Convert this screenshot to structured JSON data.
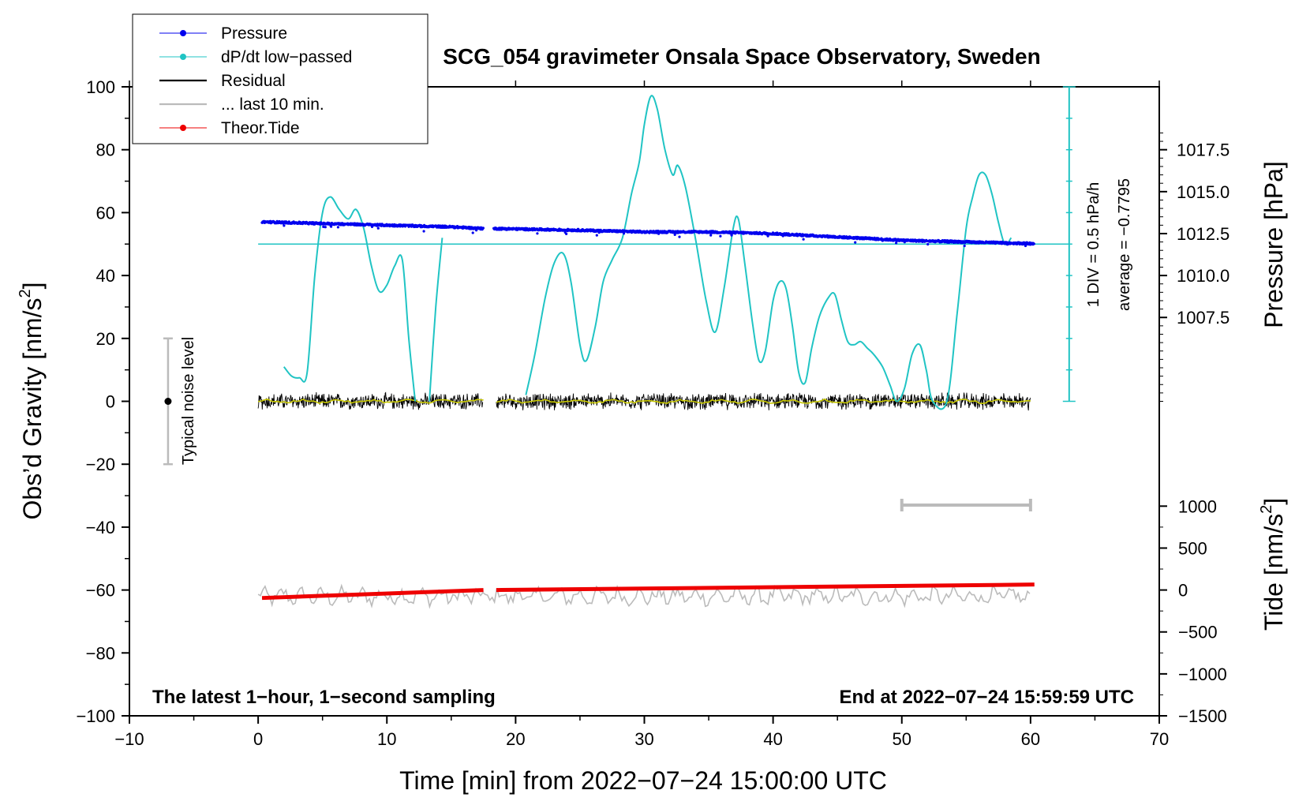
{
  "chart_data": {
    "type": "line",
    "title": "SCG_054 gravimeter Onsala Space Observatory, Sweden",
    "xlabel": "Time [min] from 2022−07−24 15:00:00 UTC",
    "ylabel": "Obs’d Gravity [nm/s²]",
    "ylabel_main": "Obs’d Gravity [nm/s",
    "ylabel_tail": "]",
    "y2label_pressure": "Pressure [hPa]",
    "y2label_tide_main": "Tide [nm/s",
    "y2label_tide_tail": "]",
    "superscript": "2",
    "xlim": [
      -10,
      70
    ],
    "ylim": [
      -100,
      100
    ],
    "x_ticks": [
      -10,
      0,
      10,
      20,
      30,
      40,
      50,
      60,
      70
    ],
    "x_tick_labels": [
      "−10",
      "0",
      "10",
      "20",
      "30",
      "40",
      "50",
      "60",
      "70"
    ],
    "y_ticks": [
      -100,
      -80,
      -60,
      -40,
      -20,
      0,
      20,
      40,
      60,
      80,
      100
    ],
    "y_tick_labels": [
      "−100",
      "−80",
      "−60",
      "−40",
      "−20",
      "0",
      "20",
      "40",
      "60",
      "80",
      "100"
    ],
    "pressure_axis": {
      "ticks": [
        1007.5,
        1010.0,
        1012.5,
        1015.0,
        1017.5
      ],
      "labels": [
        "1007.5",
        "1010.0",
        "1012.5",
        "1015.0",
        "1017.5"
      ],
      "ylim_equivalent": [
        1002.5,
        1017.5
      ]
    },
    "tide_axis": {
      "ticks": [
        -1500,
        -1000,
        -500,
        0,
        500,
        1000
      ],
      "labels": [
        "−1500",
        "−1000",
        "−500",
        "0",
        "500",
        "1000"
      ],
      "ylim_equivalent": [
        -1500,
        1000
      ]
    },
    "legend": {
      "position": "top-left",
      "entries": [
        {
          "label": "Pressure",
          "color": "#0000ee",
          "marker": true
        },
        {
          "label": "dP/dt low−passed",
          "color": "#20c4c4",
          "marker": true
        },
        {
          "label": "Residual",
          "color": "#000000",
          "marker": false
        },
        {
          "label": "... last 10 min.",
          "color": "#bbbbbb",
          "marker": false
        },
        {
          "label": "Theor.Tide",
          "color": "#ee0000",
          "marker": true
        }
      ]
    },
    "annotations": {
      "bottom_left": "The latest 1−hour, 1−second sampling",
      "bottom_right": "End at 2022−07−24 15:59:59 UTC",
      "noise_label": "Typical noise level",
      "div_label": "1 DIV = 0.5 hPa/h",
      "average_label": "average = −0.7795"
    },
    "noise_bar": {
      "x": -7,
      "y_low": -20,
      "y_high": 20,
      "y_center": 0
    },
    "dpdt_reference_level": 50,
    "dpdt_scale_bar": {
      "x": 63,
      "y_low": 0,
      "y_high": 100,
      "tick_step": 10
    },
    "last10_bar": {
      "x_start": 50,
      "x_end": 60,
      "y": -33
    },
    "series": [
      {
        "name": "Pressure",
        "unit": "hPa",
        "color": "#0000ee",
        "segments": [
          {
            "x": [
              0.3,
              5,
              10,
              15,
              17.5
            ],
            "y": [
              1013.2,
              1013.1,
              1013.0,
              1012.9,
              1012.8
            ]
          },
          {
            "x": [
              18.3,
              25,
              30,
              35,
              40,
              45,
              50,
              55,
              60.3
            ],
            "y": [
              1012.8,
              1012.7,
              1012.6,
              1012.6,
              1012.5,
              1012.3,
              1012.1,
              1012.0,
              1011.9
            ]
          }
        ]
      },
      {
        "name": "dP/dt low−passed",
        "unit": "nm/s² scale",
        "color": "#20c4c4",
        "segments": [
          {
            "x": [
              2,
              2.6,
              3.2,
              3.8,
              4.4,
              5.0,
              5.6,
              6.3,
              7.0,
              7.6,
              8.2,
              8.8,
              9.4,
              10.0,
              10.6,
              11.2,
              11.7,
              12.2
            ],
            "y": [
              11,
              8,
              7.5,
              9,
              40,
              60,
              65,
              61,
              58,
              61,
              55,
              43,
              35,
              37,
              43,
              45,
              20,
              0
            ]
          },
          {
            "x": [
              13.3,
              13.8,
              14.3
            ],
            "y": [
              0,
              30,
              52
            ]
          },
          {
            "x": [
              20.8,
              21.5,
              22.3,
              23.0,
              23.7,
              24.3,
              25.0,
              25.5,
              26.2,
              26.8,
              27.5,
              28.3,
              29.0,
              29.6,
              30.0,
              30.5,
              31.0,
              31.6,
              32.2,
              32.6,
              33.2,
              34.0,
              34.8,
              35.5,
              36.2,
              36.9,
              37.3,
              37.8,
              38.4,
              38.9,
              39.4,
              40.0,
              40.5,
              41.0,
              41.5,
              42.0,
              42.5,
              43.0,
              43.6,
              44.3,
              44.8,
              45.3,
              45.8,
              46.3,
              46.8,
              47.3,
              47.8,
              48.5,
              49.1,
              49.6,
              50.2,
              50.8,
              51.4,
              51.9,
              52.4,
              53.5,
              54.3,
              55.0,
              55.5,
              56.0,
              56.5,
              57.0,
              57.5,
              58.0,
              58.5
            ],
            "y": [
              2,
              15,
              33,
              44,
              47,
              38,
              18,
              13,
              24,
              38,
              45,
              52,
              66,
              76,
              88,
              97,
              93,
              80,
              72,
              75,
              68,
              51,
              32,
              22,
              36,
              55,
              58,
              44,
              25,
              13,
              16,
              32,
              38,
              36,
              24,
              9,
              6,
              17,
              27,
              33,
              34,
              26,
              19,
              18,
              19,
              17,
              15,
              11,
              5,
              0,
              4,
              15,
              18,
              10,
              0,
              0,
              28,
              55,
              65,
              72,
              72,
              66,
              57,
              50,
              52
            ]
          }
        ]
      },
      {
        "name": "Residual",
        "color": "#000000",
        "x": [
          0,
          17.5,
          18.5,
          60
        ],
        "y": [
          0,
          0,
          0,
          0
        ],
        "amplitude": 3
      },
      {
        "name": "Residual smoothed",
        "color": "#c8c800",
        "x": [
          0,
          17.5,
          18.5,
          60
        ],
        "y": [
          0,
          0,
          0,
          0
        ]
      },
      {
        "name": "... last 10 min.",
        "color": "#bbbbbb",
        "x": [
          0,
          60
        ],
        "y": [
          -62,
          -62
        ],
        "amplitude": 2.5
      },
      {
        "name": "Theor.Tide",
        "unit": "nm/s²",
        "color": "#ee0000",
        "segments": [
          {
            "x": [
              0.3,
              17.5
            ],
            "y": [
              -95,
              0
            ]
          },
          {
            "x": [
              18.5,
              60.3
            ],
            "y": [
              0,
              65
            ]
          }
        ]
      }
    ]
  }
}
